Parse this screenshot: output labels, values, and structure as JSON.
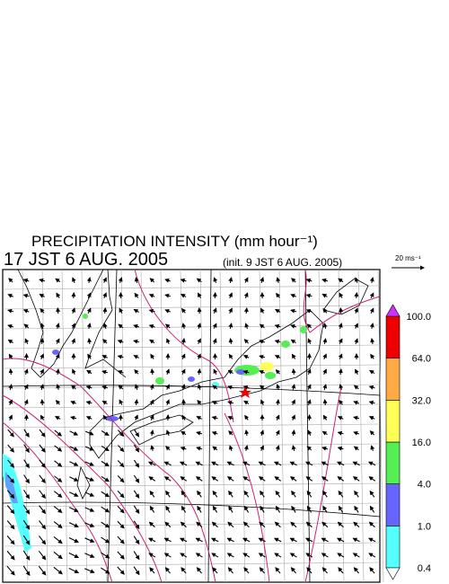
{
  "header": {
    "title": "PRECIPITATION INTENSITY (mm hour⁻¹)",
    "time": "17 JST 6 AUG. 2005",
    "init": "(init. 9 JST 6 AUG. 2005)",
    "vector_scale": "20 ms⁻¹"
  },
  "colorbar": {
    "levels": [
      0.4,
      {
        "value": 1,
        "label": "1.0"
      },
      {
        "value": 4,
        "label": "4.0"
      },
      {
        "value": 16,
        "label": "16.0"
      },
      {
        "value": 32,
        "label": "32.0"
      },
      {
        "value": 64,
        "label": "64.0"
      },
      {
        "value": 100,
        "label": "100.0"
      }
    ],
    "colors": [
      "#55ffff",
      "#6666ff",
      "#55ee55",
      "#ffff55",
      "#ffaa44",
      "#ee0000"
    ],
    "over_color": "#cc33ff",
    "under_color": "#ffffff"
  }
}
